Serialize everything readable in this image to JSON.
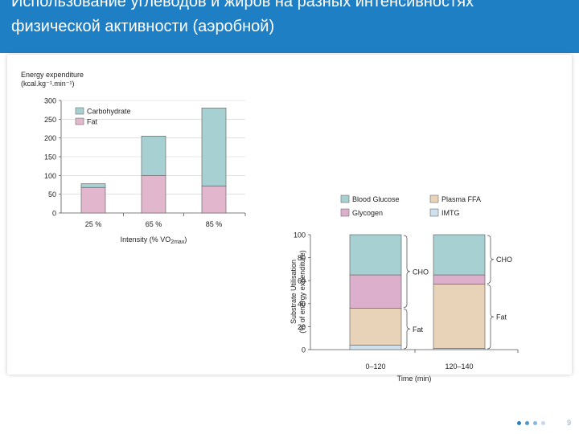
{
  "slide": {
    "title_line_1": "Использование углеводов и жиров на разных интенсивностях",
    "title_line_2": "физической активности (аэробной)",
    "page_number": "9",
    "header_color": "#1f7fc4"
  },
  "chart_data": [
    {
      "type": "bar",
      "stacked": true,
      "ylabel": "Energy expenditure",
      "ylabel_units": "(kcal.kg⁻¹.min⁻¹)",
      "xlabel": "Intensity (% VO",
      "xlabel_sub": "2max",
      "xlabel_end": ")",
      "categories": [
        "25 %",
        "65 %",
        "85 %"
      ],
      "yticks": [
        "0",
        "50",
        "100",
        "150",
        "200",
        "250",
        "300"
      ],
      "ylim": [
        0,
        300
      ],
      "legend_position": "top-left",
      "series": [
        {
          "name": "Fat",
          "color": "#e2b6cd",
          "values": [
            68,
            100,
            72
          ]
        },
        {
          "name": "Carbohydrate",
          "color": "#a7d0d2",
          "values": [
            10,
            105,
            208
          ]
        }
      ]
    },
    {
      "type": "bar",
      "stacked": true,
      "ylabel": "Substrate Utilisation",
      "ylabel_units": "(% of energy expenditure)",
      "xlabel": "Time (min)",
      "categories": [
        "0–120",
        "120–140"
      ],
      "yticks": [
        "0",
        "20",
        "40",
        "60",
        "80",
        "100"
      ],
      "ylim": [
        0,
        100
      ],
      "legend_position": "top",
      "series": [
        {
          "name": "IMTG",
          "color": "#cfe0ee",
          "values": [
            4,
            1
          ]
        },
        {
          "name": "Plasma FFA",
          "color": "#e9d3b8",
          "values": [
            32,
            56
          ]
        },
        {
          "name": "Glycogen",
          "color": "#dcb0cc",
          "values": [
            29,
            8
          ]
        },
        {
          "name": "Blood Glucose",
          "color": "#a7d0d2",
          "values": [
            35,
            35
          ]
        }
      ],
      "legend_order": [
        "Blood Glucose",
        "Plasma FFA",
        "Glycogen",
        "IMTG"
      ],
      "annotations": [
        {
          "label": "CHO",
          "bar": 0,
          "from": 36,
          "to": 100,
          "side": "right"
        },
        {
          "label": "Fat",
          "bar": 0,
          "from": 0,
          "to": 36,
          "side": "right"
        },
        {
          "label": "CHO",
          "bar": 1,
          "from": 57,
          "to": 100,
          "side": "right"
        },
        {
          "label": "Fat",
          "bar": 1,
          "from": 0,
          "to": 57,
          "side": "right"
        }
      ]
    }
  ],
  "nav": {
    "dot_colors": [
      "#2a7fc0",
      "#4f97cc",
      "#86b8de",
      "#c3daee"
    ]
  }
}
